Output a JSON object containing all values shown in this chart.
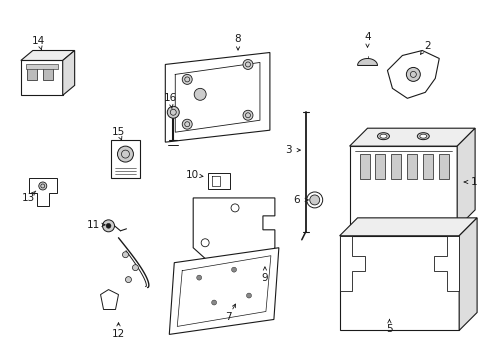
{
  "background_color": "#ffffff",
  "line_color": "#1a1a1a",
  "label_color": "#1a1a1a",
  "figsize": [
    4.89,
    3.6
  ],
  "dpi": 100,
  "labels": [
    [
      "1",
      475,
      182,
      463,
      182
    ],
    [
      "2",
      428,
      45,
      418,
      58
    ],
    [
      "3",
      289,
      150,
      303,
      150
    ],
    [
      "4",
      368,
      36,
      368,
      52
    ],
    [
      "5",
      390,
      330,
      390,
      315
    ],
    [
      "6",
      297,
      200,
      311,
      200
    ],
    [
      "7",
      228,
      318,
      238,
      300
    ],
    [
      "8",
      238,
      38,
      238,
      52
    ],
    [
      "9",
      265,
      278,
      265,
      262
    ],
    [
      "10",
      192,
      175,
      208,
      177
    ],
    [
      "11",
      93,
      225,
      107,
      225
    ],
    [
      "12",
      118,
      335,
      118,
      318
    ],
    [
      "13",
      28,
      198,
      38,
      188
    ],
    [
      "14",
      38,
      40,
      42,
      54
    ],
    [
      "15",
      118,
      132,
      122,
      142
    ],
    [
      "16",
      170,
      98,
      172,
      110
    ]
  ]
}
